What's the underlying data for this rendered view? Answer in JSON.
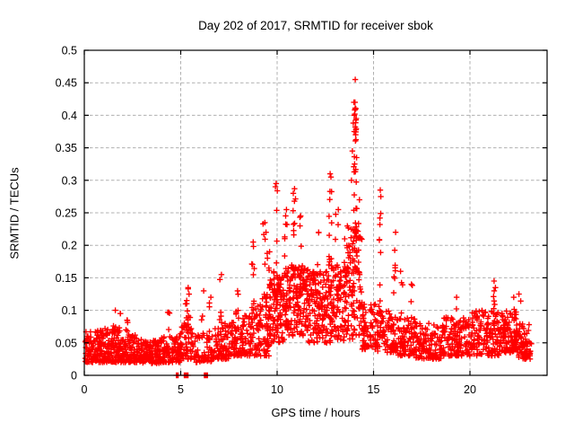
{
  "chart_data": {
    "type": "scatter",
    "title": "Day 202 of 2017, SRMTID for receiver sbok",
    "xlabel": "GPS time / hours",
    "ylabel": "SRMTID / TECUs",
    "xlim": [
      0,
      24
    ],
    "ylim": [
      0,
      0.5
    ],
    "xticks": [
      0,
      5,
      10,
      15,
      20
    ],
    "yticks": [
      0,
      0.05,
      0.1,
      0.15,
      0.2,
      0.25,
      0.3,
      0.35,
      0.4,
      0.45,
      0.5
    ],
    "grid": true,
    "legend": "none",
    "marker": "plus",
    "marker_color": "#ff0000",
    "grid_color": "#b0b0b0",
    "frame_color": "#000000",
    "x_data_range": [
      0.03,
      23.2
    ],
    "band_profile": [
      {
        "x0": 0.0,
        "x1": 1.0,
        "lo": 0.02,
        "hi": 0.07,
        "n": 120,
        "skew": 1.5
      },
      {
        "x0": 1.0,
        "x1": 2.0,
        "lo": 0.02,
        "hi": 0.072,
        "n": 120,
        "skew": 1.5
      },
      {
        "x0": 2.0,
        "x1": 3.0,
        "lo": 0.02,
        "hi": 0.062,
        "n": 110,
        "skew": 1.5
      },
      {
        "x0": 3.0,
        "x1": 4.0,
        "lo": 0.018,
        "hi": 0.056,
        "n": 110,
        "skew": 1.5
      },
      {
        "x0": 4.0,
        "x1": 5.0,
        "lo": 0.02,
        "hi": 0.06,
        "n": 100,
        "skew": 1.5
      },
      {
        "x0": 5.0,
        "x1": 5.6,
        "lo": 0.025,
        "hi": 0.08,
        "n": 50,
        "skew": 1.4
      },
      {
        "x0": 5.6,
        "x1": 6.6,
        "lo": 0.02,
        "hi": 0.065,
        "n": 55,
        "skew": 1.5
      },
      {
        "x0": 6.6,
        "x1": 7.6,
        "lo": 0.025,
        "hi": 0.08,
        "n": 80,
        "skew": 1.5
      },
      {
        "x0": 7.6,
        "x1": 8.6,
        "lo": 0.03,
        "hi": 0.095,
        "n": 90,
        "skew": 1.5
      },
      {
        "x0": 8.6,
        "x1": 9.6,
        "lo": 0.03,
        "hi": 0.12,
        "n": 100,
        "skew": 1.4
      },
      {
        "x0": 9.6,
        "x1": 10.4,
        "lo": 0.05,
        "hi": 0.16,
        "n": 110,
        "skew": 1.1
      },
      {
        "x0": 10.4,
        "x1": 11.6,
        "lo": 0.06,
        "hi": 0.17,
        "n": 160,
        "skew": 1.0
      },
      {
        "x0": 11.6,
        "x1": 12.6,
        "lo": 0.05,
        "hi": 0.16,
        "n": 130,
        "skew": 1.1
      },
      {
        "x0": 12.6,
        "x1": 13.6,
        "lo": 0.05,
        "hi": 0.17,
        "n": 110,
        "skew": 1.1
      },
      {
        "x0": 13.6,
        "x1": 14.4,
        "lo": 0.05,
        "hi": 0.23,
        "n": 100,
        "skew": 1.2
      },
      {
        "x0": 14.4,
        "x1": 15.2,
        "lo": 0.04,
        "hi": 0.11,
        "n": 80,
        "skew": 1.3
      },
      {
        "x0": 15.2,
        "x1": 16.2,
        "lo": 0.035,
        "hi": 0.1,
        "n": 90,
        "skew": 1.4
      },
      {
        "x0": 16.2,
        "x1": 17.2,
        "lo": 0.03,
        "hi": 0.09,
        "n": 90,
        "skew": 1.5
      },
      {
        "x0": 17.2,
        "x1": 18.5,
        "lo": 0.025,
        "hi": 0.08,
        "n": 110,
        "skew": 1.5
      },
      {
        "x0": 18.5,
        "x1": 20.0,
        "lo": 0.03,
        "hi": 0.09,
        "n": 140,
        "skew": 1.5
      },
      {
        "x0": 20.0,
        "x1": 21.5,
        "lo": 0.03,
        "hi": 0.1,
        "n": 140,
        "skew": 1.4
      },
      {
        "x0": 21.5,
        "x1": 22.5,
        "lo": 0.035,
        "hi": 0.1,
        "n": 120,
        "skew": 1.4
      },
      {
        "x0": 22.5,
        "x1": 23.2,
        "lo": 0.025,
        "hi": 0.08,
        "n": 70,
        "skew": 1.5
      }
    ],
    "spikes": [
      {
        "x": 1.55,
        "y_base": 0.06,
        "y_top": 0.1,
        "n": 6
      },
      {
        "x": 1.8,
        "y_base": 0.06,
        "y_top": 0.095,
        "n": 5
      },
      {
        "x": 2.2,
        "y_base": 0.055,
        "y_top": 0.085,
        "n": 5
      },
      {
        "x": 4.35,
        "y_base": 0.06,
        "y_top": 0.097,
        "n": 4
      },
      {
        "x": 5.3,
        "y_base": 0.06,
        "y_top": 0.115,
        "n": 7
      },
      {
        "x": 5.45,
        "y_base": 0.06,
        "y_top": 0.135,
        "n": 7
      },
      {
        "x": 6.15,
        "y_base": 0.05,
        "y_top": 0.13,
        "n": 6
      },
      {
        "x": 6.55,
        "y_base": 0.05,
        "y_top": 0.12,
        "n": 5
      },
      {
        "x": 7.05,
        "y_base": 0.05,
        "y_top": 0.155,
        "n": 7
      },
      {
        "x": 7.9,
        "y_base": 0.06,
        "y_top": 0.13,
        "n": 6
      },
      {
        "x": 8.75,
        "y_base": 0.08,
        "y_top": 0.205,
        "n": 8
      },
      {
        "x": 9.35,
        "y_base": 0.09,
        "y_top": 0.235,
        "n": 10
      },
      {
        "x": 9.55,
        "y_base": 0.09,
        "y_top": 0.19,
        "n": 6
      },
      {
        "x": 9.95,
        "y_base": 0.08,
        "y_top": 0.29,
        "n": 12
      },
      {
        "x": 10.45,
        "y_base": 0.12,
        "y_top": 0.255,
        "n": 8
      },
      {
        "x": 10.9,
        "y_base": 0.12,
        "y_top": 0.28,
        "n": 10
      },
      {
        "x": 11.2,
        "y_base": 0.12,
        "y_top": 0.245,
        "n": 8
      },
      {
        "x": 12.15,
        "y_base": 0.1,
        "y_top": 0.22,
        "n": 6
      },
      {
        "x": 12.75,
        "y_base": 0.12,
        "y_top": 0.305,
        "n": 12
      },
      {
        "x": 13.1,
        "y_base": 0.12,
        "y_top": 0.255,
        "n": 10
      },
      {
        "x": 13.55,
        "y_base": 0.1,
        "y_top": 0.21,
        "n": 6
      },
      {
        "x": 13.9,
        "y_base": 0.1,
        "y_top": 0.3,
        "n": 10
      },
      {
        "x": 14.05,
        "y_base": 0.2,
        "y_top": 0.42,
        "n": 26
      },
      {
        "x": 14.2,
        "y_base": 0.1,
        "y_top": 0.27,
        "n": 8
      },
      {
        "x": 15.3,
        "y_base": 0.08,
        "y_top": 0.275,
        "n": 10
      },
      {
        "x": 16.1,
        "y_base": 0.07,
        "y_top": 0.22,
        "n": 8
      },
      {
        "x": 16.45,
        "y_base": 0.06,
        "y_top": 0.16,
        "n": 6
      },
      {
        "x": 17.0,
        "y_base": 0.06,
        "y_top": 0.14,
        "n": 5
      },
      {
        "x": 19.3,
        "y_base": 0.05,
        "y_top": 0.12,
        "n": 5
      },
      {
        "x": 21.3,
        "y_base": 0.06,
        "y_top": 0.13,
        "n": 7
      },
      {
        "x": 22.3,
        "y_base": 0.05,
        "y_top": 0.12,
        "n": 5
      },
      {
        "x": 22.6,
        "y_base": 0.05,
        "y_top": 0.125,
        "n": 5
      }
    ],
    "outliers": [
      [
        14.05,
        0.455
      ],
      [
        13.98,
        0.42
      ],
      [
        14.08,
        0.41
      ],
      [
        14.0,
        0.4
      ],
      [
        14.1,
        0.395
      ],
      [
        13.95,
        0.388
      ],
      [
        14.05,
        0.382
      ],
      [
        14.0,
        0.375
      ],
      [
        14.07,
        0.37
      ],
      [
        13.9,
        0.345
      ],
      [
        14.12,
        0.335
      ],
      [
        14.02,
        0.325
      ],
      [
        9.95,
        0.295
      ],
      [
        10.9,
        0.287
      ],
      [
        12.75,
        0.31
      ],
      [
        15.35,
        0.285
      ],
      [
        21.25,
        0.145
      ],
      [
        21.32,
        0.135
      ]
    ],
    "zero_clusters": [
      {
        "x0": 4.76,
        "x1": 4.88,
        "n": 5
      },
      {
        "x0": 5.18,
        "x1": 5.38,
        "n": 12
      },
      {
        "x0": 6.22,
        "x1": 6.42,
        "n": 12
      }
    ]
  }
}
